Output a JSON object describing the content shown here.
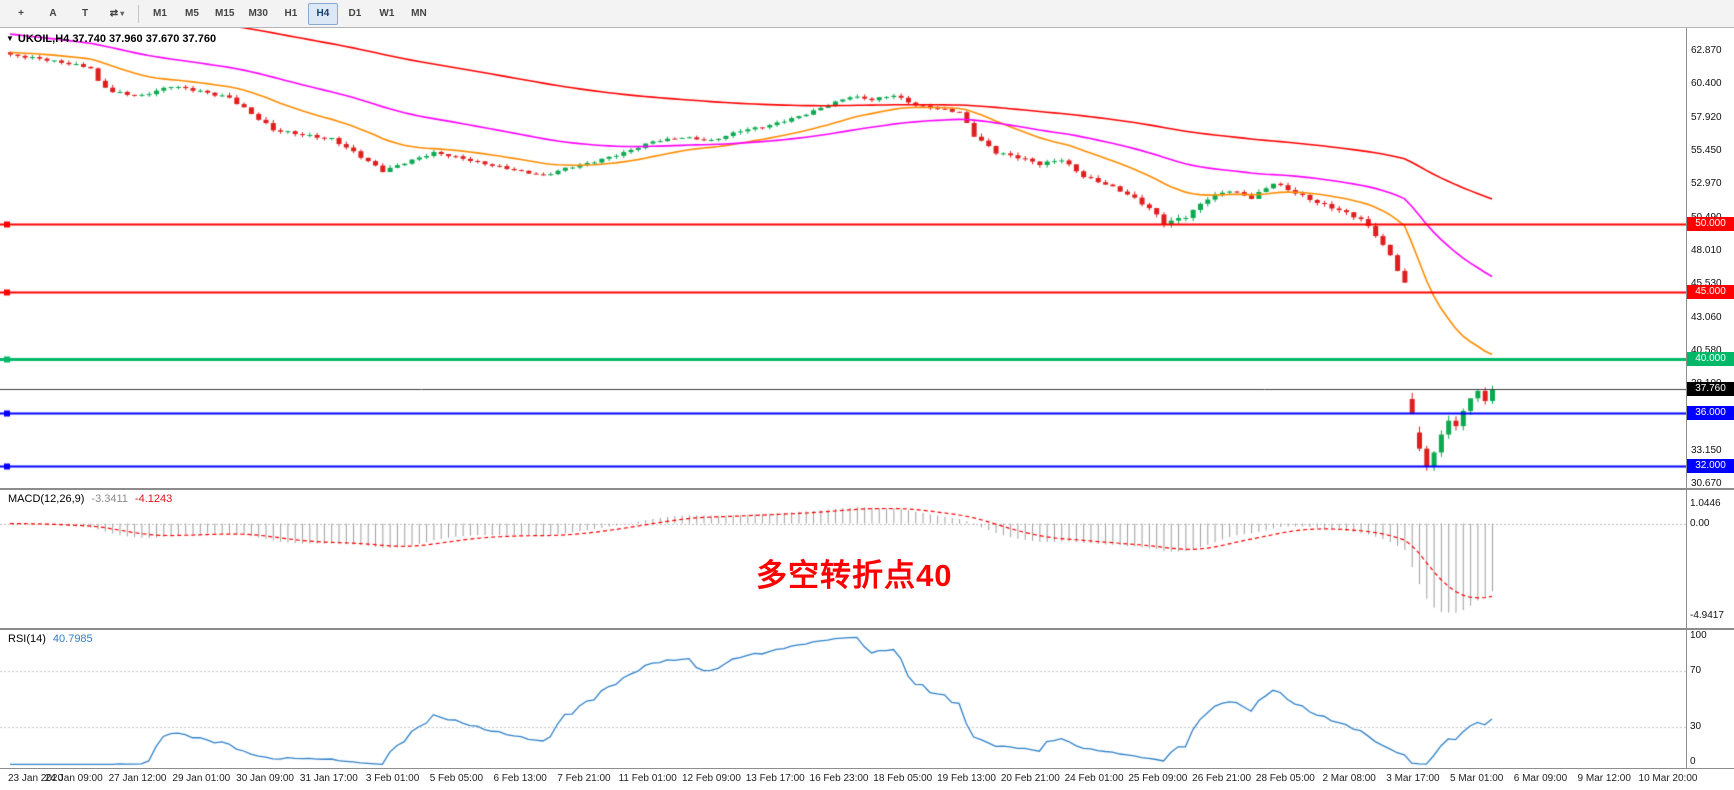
{
  "toolbar": {
    "tools": [
      {
        "name": "crosshair",
        "glyph": "+"
      },
      {
        "name": "text-label",
        "glyph": "A"
      },
      {
        "name": "text-tool",
        "glyph": "T"
      },
      {
        "name": "objects-dropdown",
        "glyph": "⇄",
        "caret": "▾"
      }
    ],
    "timeframes": [
      {
        "label": "M1"
      },
      {
        "label": "M5"
      },
      {
        "label": "M15"
      },
      {
        "label": "M30"
      },
      {
        "label": "H1"
      },
      {
        "label": "H4",
        "active": true
      },
      {
        "label": "D1"
      },
      {
        "label": "W1"
      },
      {
        "label": "MN"
      }
    ]
  },
  "chart": {
    "dropdown_glyph": "▼",
    "info_line": "UKOIL,H4 37.740 37.960 37.670 37.760"
  },
  "macd_panel": {
    "label": "MACD(12,26,9)",
    "value_main": "-3.3411",
    "value_signal": "-4.1243",
    "axis_max": "1.0446",
    "axis_zero": "0.00",
    "axis_min": "-4.9417"
  },
  "rsi_panel": {
    "label": "RSI(14)",
    "value": "40.7985",
    "ticks": [
      "100",
      "70",
      "30",
      "0"
    ]
  },
  "annotation": {
    "text": "多空转折点40",
    "color": "#ff0000"
  },
  "dates": [
    "23 Jan 2020",
    "24 Jan 09:00",
    "27 Jan 12:00",
    "29 Jan 01:00",
    "30 Jan 09:00",
    "31 Jan 17:00",
    "3 Feb 01:00",
    "5 Feb 05:00",
    "6 Feb 13:00",
    "7 Feb 21:00",
    "11 Feb 01:00",
    "12 Feb 09:00",
    "13 Feb 17:00",
    "16 Feb 23:00",
    "18 Feb 05:00",
    "19 Feb 13:00",
    "20 Feb 21:00",
    "24 Feb 01:00",
    "25 Feb 09:00",
    "26 Feb 21:00",
    "28 Feb 05:00",
    "2 Mar 08:00",
    "3 Mar 17:00",
    "5 Mar 01:00",
    "6 Mar 09:00",
    "9 Mar 12:00",
    "10 Mar 20:00"
  ],
  "chart_data": {
    "type": "candlestick",
    "symbol": "UKOIL",
    "timeframe": "H4",
    "ohlc": {
      "open": 37.74,
      "high": 37.96,
      "low": 37.67,
      "close": 37.76
    },
    "bars": 204,
    "up_color": "#0caa50",
    "down_color": "#e01e1e",
    "price_axis": {
      "min": 30.4,
      "max": 64.6,
      "ticks": [
        "62.870",
        "60.400",
        "57.920",
        "55.450",
        "52.970",
        "50.490",
        "48.010",
        "45.530",
        "43.060",
        "40.580",
        "38.100",
        "35.620",
        "33.150",
        "30.670"
      ]
    },
    "close_path": [
      [
        0,
        62.55,
        0.3
      ],
      [
        4,
        62.35,
        0.28
      ],
      [
        8,
        61.95,
        0.32
      ],
      [
        11,
        61.6,
        0.3
      ],
      [
        12,
        60.55,
        0.4
      ],
      [
        14,
        59.85,
        0.38
      ],
      [
        18,
        59.6,
        0.33
      ],
      [
        22,
        60.25,
        0.3
      ],
      [
        26,
        59.9,
        0.3
      ],
      [
        30,
        59.45,
        0.38
      ],
      [
        33,
        58.2,
        0.42
      ],
      [
        36,
        57.0,
        0.42
      ],
      [
        40,
        56.7,
        0.32
      ],
      [
        44,
        56.35,
        0.33
      ],
      [
        48,
        55.0,
        0.38
      ],
      [
        51,
        54.0,
        0.38
      ],
      [
        54,
        54.6,
        0.32
      ],
      [
        58,
        55.3,
        0.3
      ],
      [
        62,
        54.9,
        0.28
      ],
      [
        66,
        54.4,
        0.28
      ],
      [
        70,
        53.9,
        0.28
      ],
      [
        73,
        53.6,
        0.28
      ],
      [
        76,
        54.2,
        0.28
      ],
      [
        80,
        54.65,
        0.28
      ],
      [
        84,
        55.3,
        0.32
      ],
      [
        88,
        56.2,
        0.3
      ],
      [
        92,
        56.45,
        0.28
      ],
      [
        96,
        56.2,
        0.28
      ],
      [
        100,
        57.0,
        0.3
      ],
      [
        104,
        57.35,
        0.28
      ],
      [
        108,
        58.0,
        0.32
      ],
      [
        112,
        58.9,
        0.33
      ],
      [
        115,
        59.5,
        0.32
      ],
      [
        118,
        59.25,
        0.3
      ],
      [
        121,
        59.6,
        0.3
      ],
      [
        124,
        58.9,
        0.32
      ],
      [
        127,
        58.6,
        0.3
      ],
      [
        130,
        58.3,
        0.3
      ],
      [
        132,
        56.6,
        0.45
      ],
      [
        135,
        55.4,
        0.42
      ],
      [
        138,
        55.0,
        0.38
      ],
      [
        141,
        54.45,
        0.38
      ],
      [
        144,
        54.8,
        0.33
      ],
      [
        147,
        53.6,
        0.38
      ],
      [
        150,
        53.0,
        0.38
      ],
      [
        153,
        52.2,
        0.4
      ],
      [
        156,
        51.2,
        0.45
      ],
      [
        158,
        50.15,
        0.5
      ],
      [
        161,
        50.6,
        0.45
      ],
      [
        164,
        51.9,
        0.42
      ],
      [
        167,
        52.5,
        0.38
      ],
      [
        170,
        52.0,
        0.4
      ],
      [
        173,
        53.1,
        0.38
      ],
      [
        176,
        52.3,
        0.38
      ],
      [
        179,
        51.6,
        0.38
      ],
      [
        182,
        51.1,
        0.38
      ],
      [
        185,
        50.4,
        0.42
      ],
      [
        187,
        49.2,
        0.45
      ],
      [
        189,
        47.6,
        0.48
      ],
      [
        191,
        45.6,
        0.42
      ],
      [
        192,
        35.9,
        0.85
      ],
      [
        193,
        33.6,
        1.0
      ],
      [
        194,
        31.9,
        1.1
      ],
      [
        195,
        33.1,
        0.9
      ],
      [
        196,
        34.6,
        0.8
      ],
      [
        197,
        35.3,
        0.7
      ],
      [
        198,
        35.0,
        0.65
      ],
      [
        199,
        36.2,
        0.6
      ],
      [
        200,
        36.9,
        0.55
      ],
      [
        201,
        37.6,
        0.5
      ],
      [
        202,
        36.9,
        0.5
      ],
      [
        203,
        37.76,
        0.45
      ]
    ],
    "mas": [
      {
        "name": "ma-fast-orange",
        "period": 21,
        "seed": 62.8,
        "color": "#ff8c00"
      },
      {
        "name": "ma-mid-magenta",
        "period": 55,
        "seed": 64.2,
        "color": "#ff00ff"
      },
      {
        "name": "ma-slow-red",
        "period": 144,
        "seed": 67.0,
        "color": "#ff0000"
      }
    ],
    "hlines": [
      {
        "price": 50.0,
        "label": "50.000",
        "color": "#ff0000",
        "width": 2
      },
      {
        "price": 45.0,
        "label": "45.000",
        "color": "#ff0000",
        "width": 2
      },
      {
        "price": 40.0,
        "label": "40.000",
        "color": "#00b868",
        "width": 3
      },
      {
        "price": 36.0,
        "label": "36.000",
        "color": "#0000ff",
        "width": 2
      },
      {
        "price": 32.0,
        "label": "32.000",
        "color": "#0000ff",
        "width": 2
      }
    ],
    "current_price": {
      "value": 37.76,
      "label": "37.760",
      "line_color": "#3c3c3c",
      "badge_bg": "#000000"
    },
    "macd": {
      "fast": 12,
      "slow": 26,
      "signal": 9,
      "axis": {
        "min": -5.6,
        "max": 1.8
      },
      "hist_color": "#9e9e9e",
      "signal_color": "#ff0000"
    },
    "rsi": {
      "period": 14,
      "axis": {
        "min": 0,
        "max": 100
      },
      "levels": [
        70,
        30
      ],
      "color": "#2f80c9"
    }
  }
}
